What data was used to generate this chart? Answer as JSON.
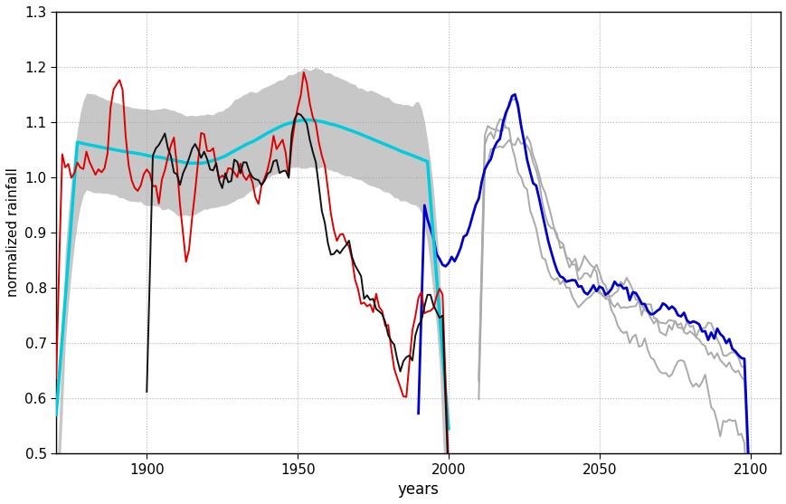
{
  "xlabel": "years",
  "ylabel": "normalized rainfall",
  "xlim": [
    1870,
    2110
  ],
  "ylim": [
    0.5,
    1.3
  ],
  "yticks": [
    0.5,
    0.6,
    0.7,
    0.8,
    0.9,
    1.0,
    1.1,
    1.2,
    1.3
  ],
  "xticks": [
    1900,
    1950,
    2000,
    2050,
    2100
  ],
  "grid_color": "#aaaaaa",
  "background_color": "#ffffff",
  "gray_band_alpha": 0.55,
  "gray_band_color": "#999999",
  "red_color": "#dd0000",
  "black_color": "#111111",
  "cyan_color": "#00ccdd",
  "blue_color": "#0000cc",
  "light_gray_color": "#aaaaaa"
}
